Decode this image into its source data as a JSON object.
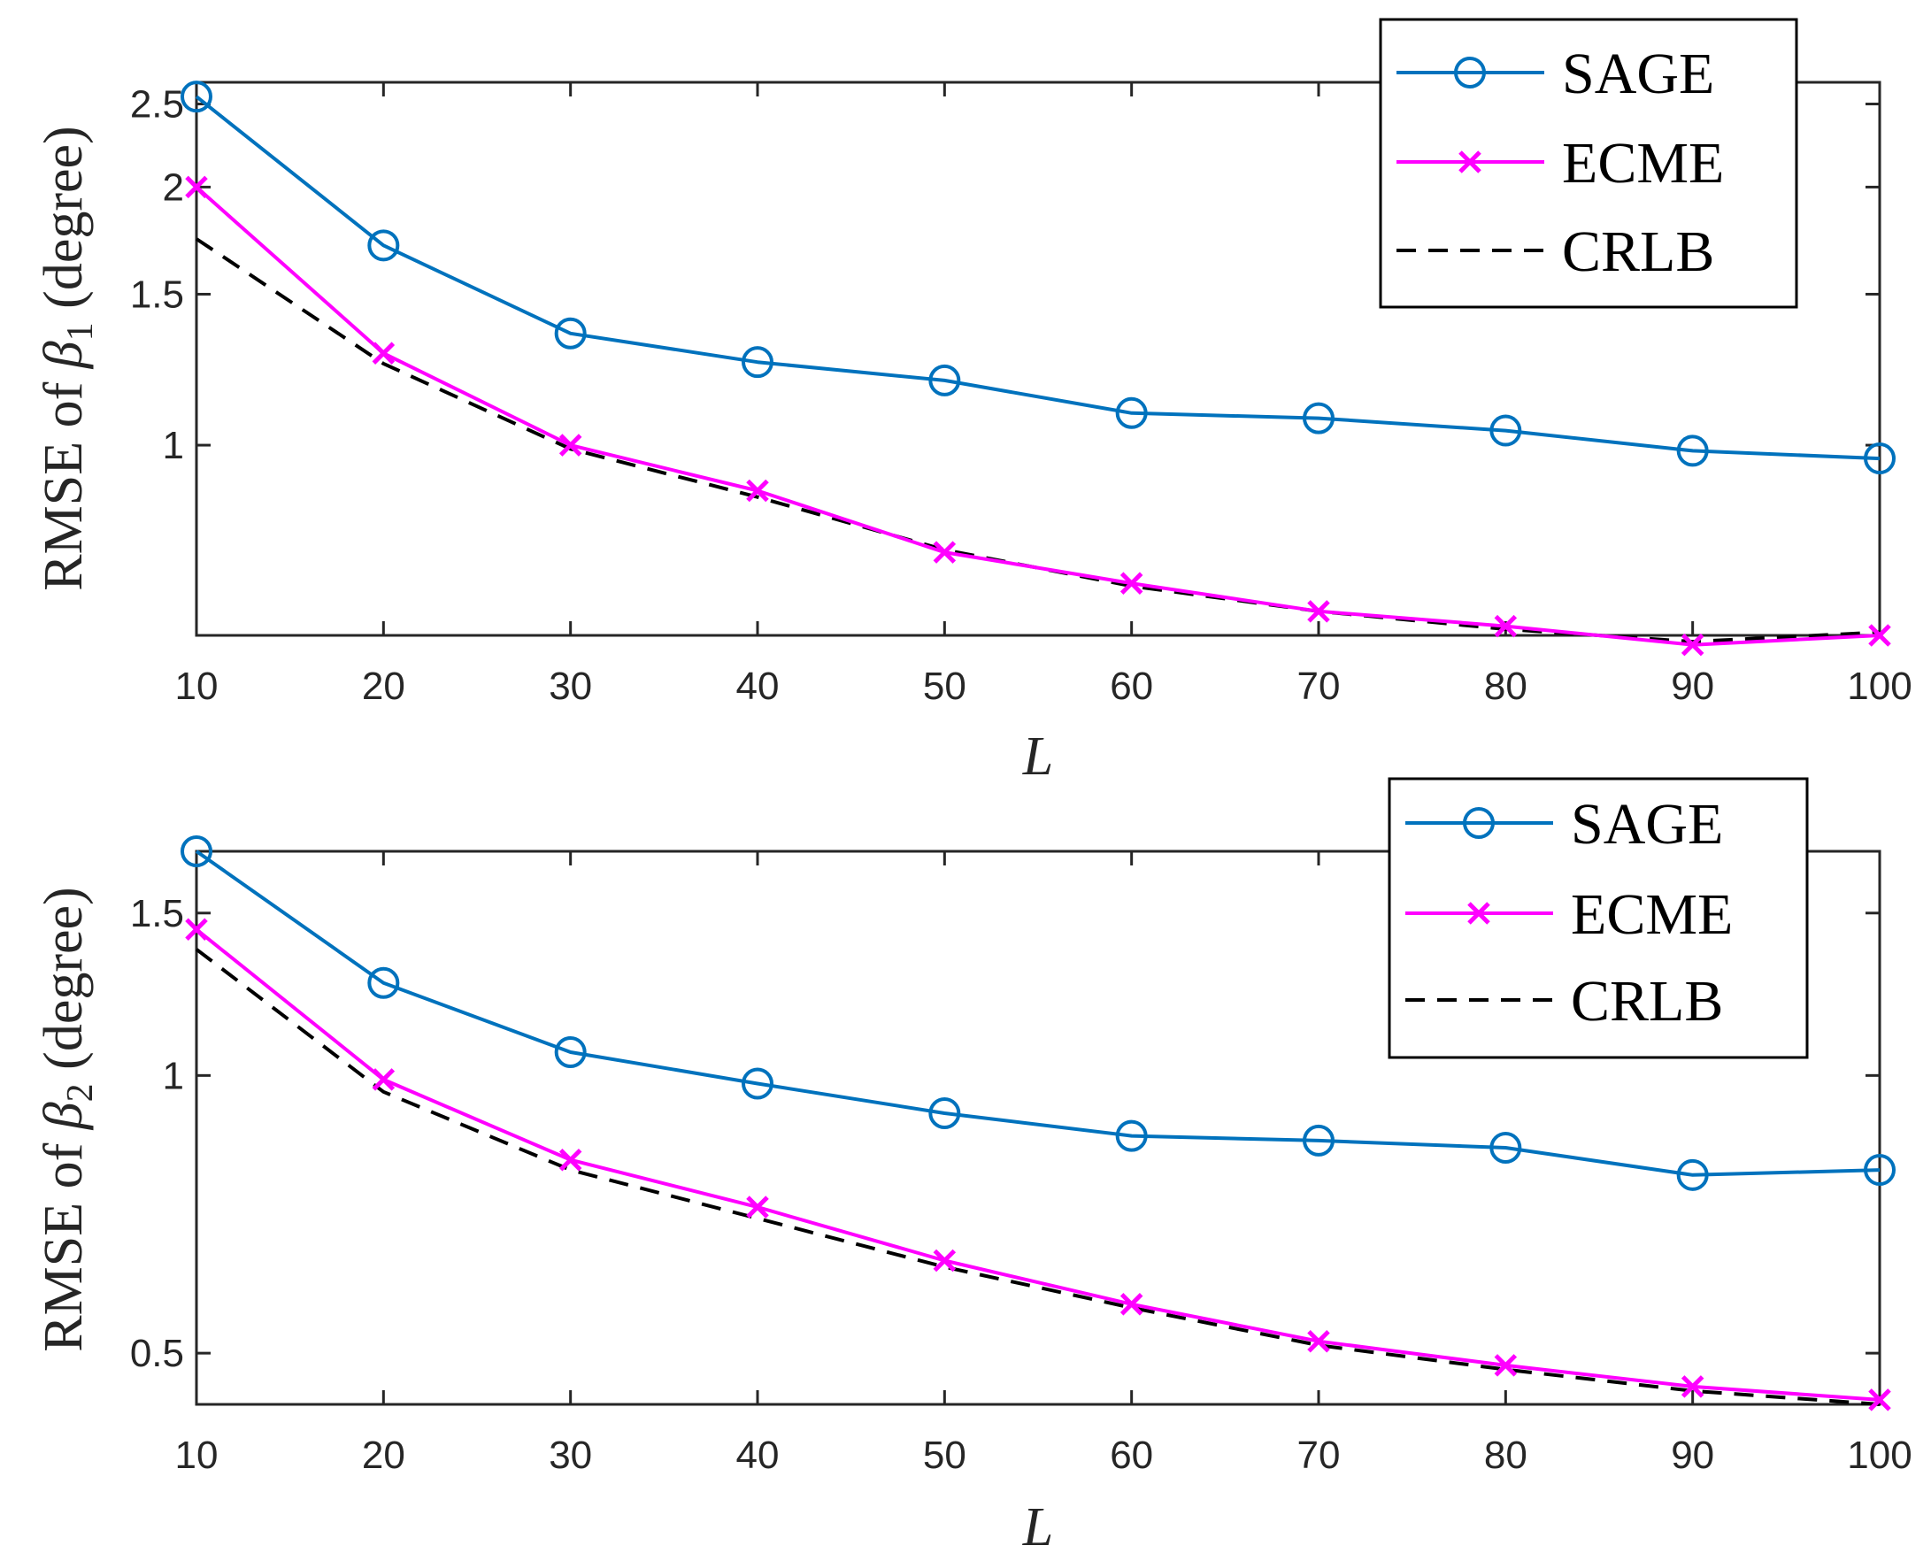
{
  "colors": {
    "sage": "#0072BD",
    "ecme": "#FF00FF",
    "crlb": "#000000",
    "axis": "#262626"
  },
  "chart_data": [
    {
      "type": "line",
      "yscale": "log",
      "xlabel": "L",
      "ylabel_prefix": "RMSE of ",
      "ylabel_symbol": "β",
      "ylabel_sub": "1",
      "ylabel_suffix": " (degree)",
      "x": [
        10,
        20,
        30,
        40,
        50,
        60,
        70,
        80,
        90,
        100
      ],
      "xlim": [
        10,
        100
      ],
      "ylim": [
        0.6,
        2.65
      ],
      "xticks": [
        10,
        20,
        30,
        40,
        50,
        60,
        70,
        80,
        90,
        100
      ],
      "xtick_labels": [
        "10",
        "20",
        "30",
        "40",
        "50",
        "60",
        "70",
        "80",
        "90",
        "100"
      ],
      "yticks": [
        1,
        1.5,
        2,
        2.5
      ],
      "ytick_labels": [
        "1",
        "1.5",
        "2",
        "2.5"
      ],
      "legend_position": "top-right",
      "series": [
        {
          "name": "SAGE",
          "marker": "circle",
          "style": "solid",
          "values": [
            2.55,
            1.71,
            1.35,
            1.25,
            1.19,
            1.09,
            1.075,
            1.04,
            0.985,
            0.965
          ]
        },
        {
          "name": "ECME",
          "marker": "x",
          "style": "solid",
          "values": [
            2.0,
            1.28,
            1.0,
            0.885,
            0.75,
            0.69,
            0.64,
            0.615,
            0.585,
            0.6
          ]
        },
        {
          "name": "CRLB",
          "marker": "none",
          "style": "dashed",
          "values": [
            1.74,
            1.245,
            0.99,
            0.87,
            0.755,
            0.685,
            0.64,
            0.61,
            0.59,
            0.605
          ]
        }
      ]
    },
    {
      "type": "line",
      "yscale": "log",
      "xlabel": "L",
      "ylabel_prefix": "RMSE of ",
      "ylabel_symbol": "β",
      "ylabel_sub": "2",
      "ylabel_suffix": " (degree)",
      "x": [
        10,
        20,
        30,
        40,
        50,
        60,
        70,
        80,
        90,
        100
      ],
      "xlim": [
        10,
        100
      ],
      "ylim": [
        0.44,
        1.75
      ],
      "xticks": [
        10,
        20,
        30,
        40,
        50,
        60,
        70,
        80,
        90,
        100
      ],
      "xtick_labels": [
        "10",
        "20",
        "30",
        "40",
        "50",
        "60",
        "70",
        "80",
        "90",
        "100"
      ],
      "yticks": [
        0.5,
        1,
        1.5
      ],
      "ytick_labels": [
        "0.5",
        "1",
        "1.5"
      ],
      "legend_position": "top-right",
      "series": [
        {
          "name": "SAGE",
          "marker": "circle",
          "style": "solid",
          "values": [
            1.75,
            1.26,
            1.06,
            0.98,
            0.91,
            0.86,
            0.85,
            0.835,
            0.78,
            0.79
          ]
        },
        {
          "name": "ECME",
          "marker": "x",
          "style": "solid",
          "values": [
            1.44,
            0.99,
            0.81,
            0.72,
            0.63,
            0.565,
            0.515,
            0.485,
            0.46,
            0.445
          ]
        },
        {
          "name": "CRLB",
          "marker": "none",
          "style": "dashed",
          "values": [
            1.37,
            0.96,
            0.79,
            0.7,
            0.62,
            0.56,
            0.51,
            0.48,
            0.455,
            0.44
          ]
        }
      ]
    }
  ]
}
